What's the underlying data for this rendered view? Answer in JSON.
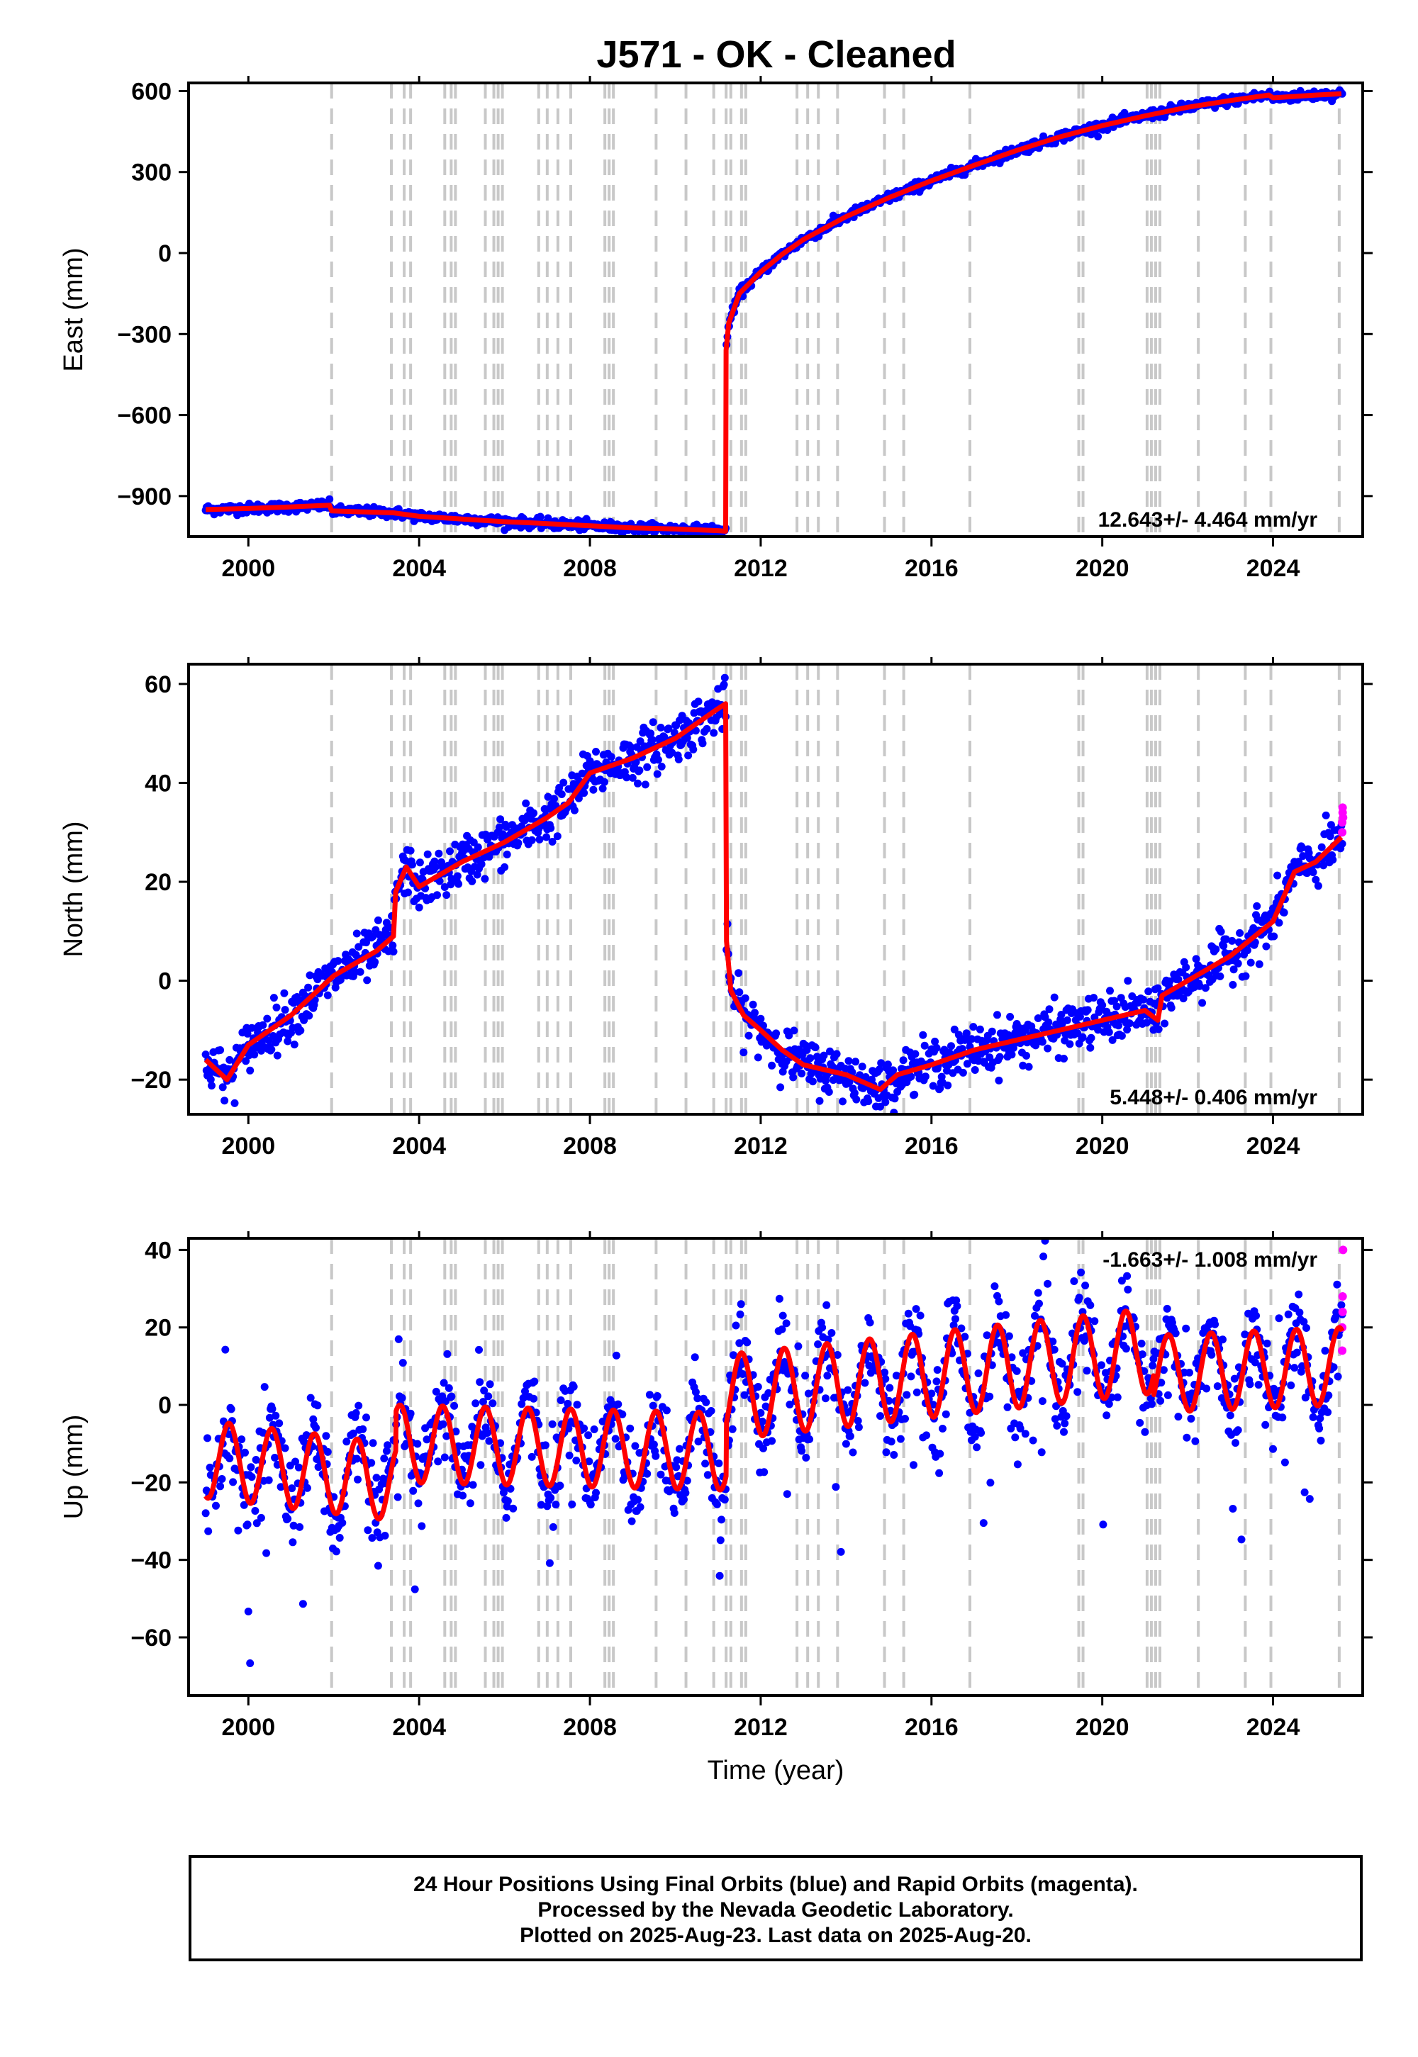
{
  "title": "J571  - OK - Cleaned",
  "footer": {
    "line1": "24 Hour Positions Using Final Orbits (blue) and Rapid Orbits (magenta).",
    "line2": "Processed by the Nevada Geodetic Laboratory.",
    "line3": "Plotted on 2025-Aug-23. Last data on 2025-Aug-20."
  },
  "colors": {
    "final_orbit_points": "#0000ff",
    "rapid_orbit_points": "#ff00ff",
    "model_line": "#ff0000",
    "event_lines": "#c8c8c8"
  },
  "chart_data": [
    {
      "type": "scatter",
      "ylabel": "East (mm)",
      "xlabel": "",
      "xlim": [
        1998.6,
        2026.1
      ],
      "ylim": [
        -1050,
        630
      ],
      "xticks": [
        2000,
        2004,
        2008,
        2012,
        2016,
        2020,
        2024
      ],
      "yticks": [
        -900,
        -600,
        -300,
        0,
        300,
        600
      ],
      "ytick_labels": [
        "−900",
        "−600",
        "−300",
        "0",
        "300",
        "600"
      ],
      "rate_text": "12.643+/- 4.464 mm/yr",
      "model_line": [
        [
          1999.0,
          -950
        ],
        [
          2000.0,
          -946
        ],
        [
          2001.0,
          -940
        ],
        [
          2001.9,
          -934
        ],
        [
          2001.95,
          -955
        ],
        [
          2003.4,
          -962
        ],
        [
          2004.0,
          -975
        ],
        [
          2005.0,
          -985
        ],
        [
          2006.0,
          -995
        ],
        [
          2007.0,
          -1002
        ],
        [
          2008.0,
          -1010
        ],
        [
          2009.0,
          -1018
        ],
        [
          2010.0,
          -1022
        ],
        [
          2011.0,
          -1028
        ],
        [
          2011.18,
          -1030
        ],
        [
          2011.19,
          -360
        ],
        [
          2011.25,
          -260
        ],
        [
          2011.5,
          -150
        ],
        [
          2012.0,
          -70
        ],
        [
          2012.5,
          -5
        ],
        [
          2013.0,
          50
        ],
        [
          2014.0,
          135
        ],
        [
          2015.0,
          205
        ],
        [
          2016.0,
          268
        ],
        [
          2017.0,
          325
        ],
        [
          2018.0,
          380
        ],
        [
          2019.0,
          430
        ],
        [
          2020.0,
          472
        ],
        [
          2021.0,
          508
        ],
        [
          2022.0,
          540
        ],
        [
          2023.0,
          565
        ],
        [
          2023.9,
          585
        ],
        [
          2024.0,
          575
        ],
        [
          2025.0,
          585
        ],
        [
          2025.6,
          590
        ]
      ],
      "noise_mm": 9,
      "rapid_points": []
    },
    {
      "type": "scatter",
      "ylabel": "North (mm)",
      "xlabel": "",
      "xlim": [
        1998.6,
        2026.1
      ],
      "ylim": [
        -27,
        64
      ],
      "xticks": [
        2000,
        2004,
        2008,
        2012,
        2016,
        2020,
        2024
      ],
      "yticks": [
        -20,
        0,
        20,
        40,
        60
      ],
      "ytick_labels": [
        "−20",
        "0",
        "20",
        "40",
        "60"
      ],
      "rate_text": "5.448+/- 0.406 mm/yr",
      "model_line": [
        [
          1999.0,
          -16
        ],
        [
          1999.5,
          -20
        ],
        [
          2000.0,
          -13
        ],
        [
          2001.0,
          -7
        ],
        [
          2002.0,
          1
        ],
        [
          2003.0,
          6
        ],
        [
          2003.4,
          9
        ],
        [
          2003.45,
          18
        ],
        [
          2003.7,
          23
        ],
        [
          2004.0,
          19
        ],
        [
          2005.0,
          24
        ],
        [
          2006.0,
          28
        ],
        [
          2007.0,
          33
        ],
        [
          2007.5,
          36
        ],
        [
          2008.0,
          42
        ],
        [
          2009.0,
          45
        ],
        [
          2010.0,
          49
        ],
        [
          2011.0,
          55
        ],
        [
          2011.18,
          56
        ],
        [
          2011.2,
          8
        ],
        [
          2011.3,
          -2
        ],
        [
          2011.6,
          -7
        ],
        [
          2012.0,
          -10
        ],
        [
          2012.5,
          -14
        ],
        [
          2013.0,
          -17
        ],
        [
          2014.0,
          -19
        ],
        [
          2014.8,
          -22
        ],
        [
          2015.2,
          -19
        ],
        [
          2016.0,
          -17
        ],
        [
          2017.0,
          -14
        ],
        [
          2018.0,
          -12
        ],
        [
          2019.0,
          -10
        ],
        [
          2020.0,
          -8
        ],
        [
          2021.0,
          -6
        ],
        [
          2021.3,
          -8
        ],
        [
          2021.4,
          -3
        ],
        [
          2022.0,
          0
        ],
        [
          2023.0,
          5
        ],
        [
          2024.0,
          12
        ],
        [
          2024.5,
          22
        ],
        [
          2025.0,
          24
        ],
        [
          2025.6,
          29
        ]
      ],
      "noise_mm": 2.5,
      "rapid_points": [
        [
          2025.62,
          30
        ],
        [
          2025.62,
          32
        ],
        [
          2025.63,
          34
        ],
        [
          2025.63,
          35
        ],
        [
          2025.64,
          33
        ]
      ]
    },
    {
      "type": "scatter",
      "ylabel": "Up (mm)",
      "xlabel": "Time (year)",
      "xlim": [
        1998.6,
        2026.1
      ],
      "ylim": [
        -75,
        43
      ],
      "xticks": [
        2000,
        2004,
        2008,
        2012,
        2016,
        2020,
        2024
      ],
      "yticks": [
        -60,
        -40,
        -20,
        0,
        20,
        40
      ],
      "ytick_labels": [
        "−60",
        "−40",
        "−20",
        "0",
        "20",
        "40"
      ],
      "rate_text": "-1.663+/- 1.008 mm/yr",
      "model_seasonal": {
        "segments": [
          {
            "x0": 1999.0,
            "x1": 2003.45,
            "base_start": -14,
            "base_end": -20,
            "amp": 10
          },
          {
            "x0": 2003.45,
            "x1": 2011.19,
            "base_start": -10,
            "base_end": -12,
            "amp": 10
          },
          {
            "x0": 2011.19,
            "x1": 2021.2,
            "base_start": 2,
            "base_end": 14,
            "amp": 11
          },
          {
            "x0": 2021.2,
            "x1": 2025.62,
            "base_start": 8,
            "base_end": 10,
            "amp": 10
          }
        ]
      },
      "noise_mm": 6,
      "rapid_points": [
        [
          2025.62,
          14
        ],
        [
          2025.62,
          20
        ],
        [
          2025.63,
          24
        ],
        [
          2025.63,
          28
        ],
        [
          2025.64,
          40
        ]
      ]
    }
  ],
  "event_lines_years": [
    2001.95,
    2003.35,
    2003.65,
    2003.8,
    2004.6,
    2004.75,
    2004.85,
    2005.55,
    2005.75,
    2005.85,
    2005.95,
    2006.8,
    2007.0,
    2007.25,
    2007.55,
    2008.35,
    2008.45,
    2008.55,
    2009.55,
    2010.25,
    2010.9,
    2011.19,
    2011.3,
    2011.55,
    2011.65,
    2012.85,
    2013.1,
    2013.35,
    2013.8,
    2014.9,
    2015.35,
    2016.9,
    2019.45,
    2019.55,
    2021.05,
    2021.15,
    2021.25,
    2021.35,
    2022.25,
    2023.35,
    2023.95,
    2025.55
  ]
}
